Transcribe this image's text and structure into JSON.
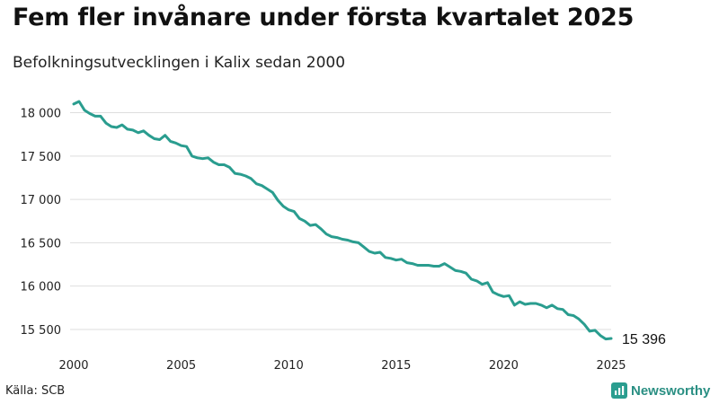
{
  "title": "Fem fler invånare under första kvartalet 2025",
  "subtitle": "Befolkningsutvecklingen i Kalix sedan 2000",
  "source": "Källa: SCB",
  "brand": {
    "name": "Newsworthy",
    "icon": "newsworthy-logo-icon",
    "color": "#2a9d8f"
  },
  "end_label": "15 396",
  "chart_data": {
    "type": "line",
    "title": "Fem fler invånare under första kvartalet 2025",
    "subtitle": "Befolkningsutvecklingen i Kalix sedan 2000",
    "xlabel": "",
    "ylabel": "",
    "xlim": [
      2000,
      2025
    ],
    "ylim": [
      15396,
      18130
    ],
    "x_ticks": [
      2000,
      2005,
      2010,
      2015,
      2020,
      2025
    ],
    "x_tick_labels": [
      "2000",
      "2005",
      "2010",
      "2015",
      "2020",
      "2025"
    ],
    "y_ticks": [
      15500,
      16000,
      16500,
      17000,
      17500,
      18000
    ],
    "y_tick_labels": [
      "15 500",
      "16 000",
      "16 500",
      "17 000",
      "17 500",
      "18 000"
    ],
    "grid": "horizontal",
    "line_color": "#2a9d8f",
    "series": [
      {
        "x": [
          2000.0,
          2000.25,
          2000.5,
          2000.75,
          2001.0,
          2001.25,
          2001.5,
          2001.75,
          2002.0,
          2002.25,
          2002.5,
          2002.75,
          2003.0,
          2003.25,
          2003.5,
          2003.75,
          2004.0,
          2004.25,
          2004.5,
          2004.75,
          2005.0,
          2005.25,
          2005.5,
          2005.75,
          2006.0,
          2006.25,
          2006.5,
          2006.75,
          2007.0,
          2007.25,
          2007.5,
          2007.75,
          2008.0,
          2008.25,
          2008.5,
          2008.75,
          2009.0,
          2009.25,
          2009.5,
          2009.75,
          2010.0,
          2010.25,
          2010.5,
          2010.75,
          2011.0,
          2011.25,
          2011.5,
          2011.75,
          2012.0,
          2012.25,
          2012.5,
          2012.75,
          2013.0,
          2013.25,
          2013.5,
          2013.75,
          2014.0,
          2014.25,
          2014.5,
          2014.75,
          2015.0,
          2015.25,
          2015.5,
          2015.75,
          2016.0,
          2016.25,
          2016.5,
          2016.75,
          2017.0,
          2017.25,
          2017.5,
          2017.75,
          2018.0,
          2018.25,
          2018.5,
          2018.75,
          2019.0,
          2019.25,
          2019.5,
          2019.75,
          2020.0,
          2020.25,
          2020.5,
          2020.75,
          2021.0,
          2021.25,
          2021.5,
          2021.75,
          2022.0,
          2022.25,
          2022.5,
          2022.75,
          2023.0,
          2023.25,
          2023.5,
          2023.75,
          2024.0,
          2024.25,
          2024.5,
          2024.75,
          2025.0
        ],
        "y": [
          18100,
          18130,
          18030,
          17990,
          17960,
          17960,
          17880,
          17840,
          17830,
          17860,
          17810,
          17800,
          17770,
          17790,
          17740,
          17700,
          17690,
          17740,
          17670,
          17650,
          17620,
          17610,
          17500,
          17480,
          17470,
          17480,
          17430,
          17400,
          17400,
          17370,
          17300,
          17290,
          17270,
          17240,
          17180,
          17160,
          17120,
          17080,
          16990,
          16920,
          16880,
          16860,
          16780,
          16750,
          16700,
          16710,
          16660,
          16600,
          16570,
          16560,
          16540,
          16530,
          16510,
          16500,
          16450,
          16400,
          16380,
          16390,
          16330,
          16320,
          16300,
          16310,
          16270,
          16260,
          16240,
          16240,
          16240,
          16230,
          16230,
          16260,
          16220,
          16180,
          16170,
          16150,
          16080,
          16060,
          16020,
          16040,
          15930,
          15900,
          15880,
          15890,
          15780,
          15820,
          15790,
          15800,
          15800,
          15780,
          15750,
          15780,
          15740,
          15730,
          15670,
          15660,
          15620,
          15560,
          15480,
          15490,
          15430,
          15390,
          15396
        ]
      }
    ]
  }
}
